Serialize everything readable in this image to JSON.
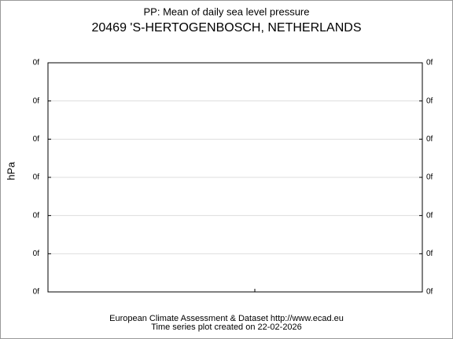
{
  "header": {
    "title": "PP: Mean of daily sea level pressure",
    "subtitle": "20469 'S-HERTOGENBOSCH, NETHERLANDS"
  },
  "axis": {
    "ylabel": "hPa",
    "left_tick_labels": [
      "0f",
      "0f",
      "0f",
      "0f",
      "0f",
      "0f",
      "0f"
    ],
    "right_tick_labels": [
      "0f",
      "0f",
      "0f",
      "0f",
      "0f",
      "0f",
      "0f"
    ]
  },
  "footer": {
    "line1": "European Climate Assessment & Dataset  http://www.ecad.eu",
    "line2": "Time series plot created on 22-02-2026"
  }
}
